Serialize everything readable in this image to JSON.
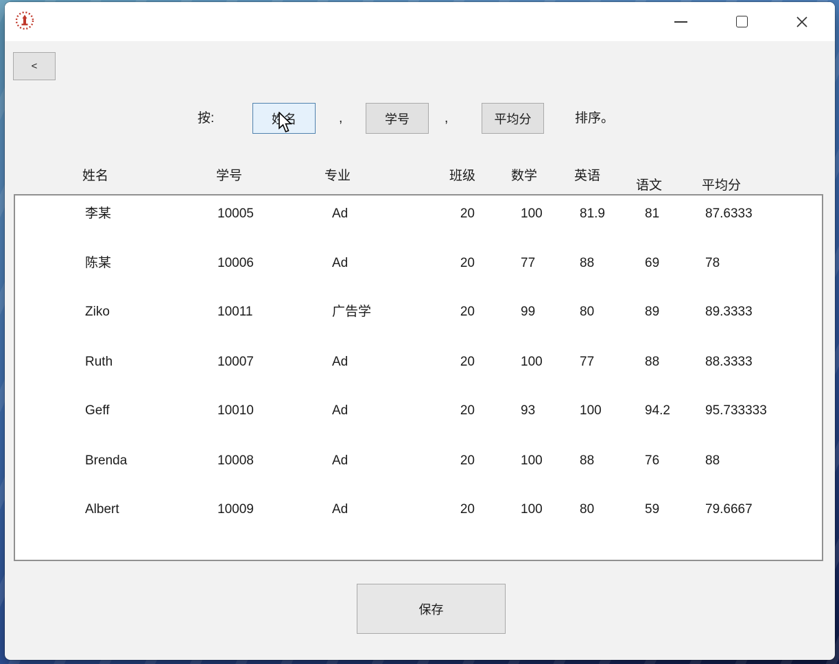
{
  "window": {
    "icons": {
      "app_logo": "red-seal-emblem",
      "minimize": "–",
      "maximize": "□",
      "close": "✕",
      "cursor": "arrow-pointer"
    }
  },
  "toolbar": {
    "back_label": "<"
  },
  "sort_bar": {
    "prefix": "按:",
    "separator": ",",
    "suffix": "排序。",
    "buttons": [
      {
        "label": "姓名",
        "state": "hover"
      },
      {
        "label": "学号",
        "state": "normal"
      },
      {
        "label": "平均分",
        "state": "normal"
      }
    ]
  },
  "table": {
    "headers": [
      "姓名",
      "学号",
      "专业",
      "班级",
      "数学",
      "英语",
      "语文",
      "平均分"
    ],
    "rows": [
      [
        "李某",
        "10005",
        "Ad",
        "20",
        "100",
        "81.9",
        "81",
        "87.6333"
      ],
      [
        "陈某",
        "10006",
        "Ad",
        "20",
        "77",
        "88",
        "69",
        "78"
      ],
      [
        "Ziko",
        "10011",
        "广告学",
        "20",
        "99",
        "80",
        "89",
        "89.3333"
      ],
      [
        "Ruth",
        "10007",
        "Ad",
        "20",
        "100",
        "77",
        "88",
        "88.3333"
      ],
      [
        "Geff",
        "10010",
        "Ad",
        "20",
        "93",
        "100",
        "94.2",
        "95.733333"
      ],
      [
        "Brenda",
        "10008",
        "Ad",
        "20",
        "100",
        "88",
        "76",
        "88"
      ],
      [
        "Albert",
        "10009",
        "Ad",
        "20",
        "100",
        "80",
        "59",
        "79.6667"
      ]
    ]
  },
  "save_button": {
    "label": "保存"
  },
  "colors": {
    "titlebar_bg": "#ffffff",
    "client_bg": "#f2f2f2",
    "button_bg": "#e1e1e1",
    "button_border": "#a9a9a9",
    "hover_button_bg": "#e5f1fb",
    "hover_button_border": "#4e81ad",
    "table_border": "#909090",
    "logo_red": "#c0392b",
    "text": "#1b1b1b"
  }
}
